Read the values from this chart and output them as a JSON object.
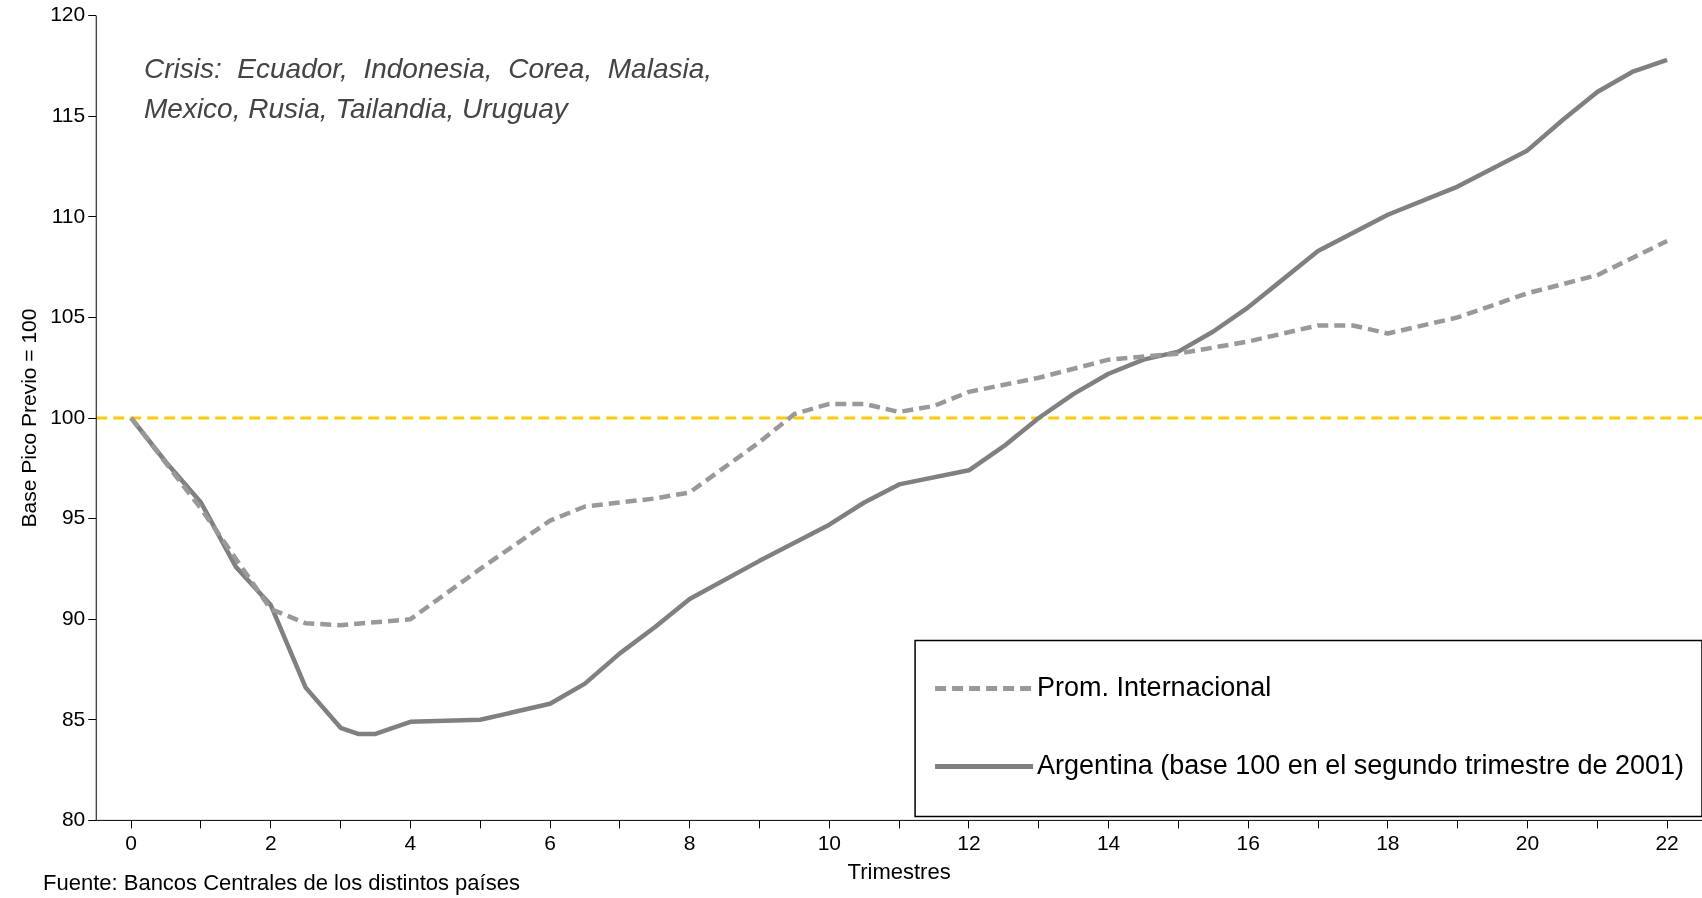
{
  "chart_data": {
    "type": "line",
    "xlabel": "Trimestres",
    "ylabel": "Base Pico Previo = 100",
    "annotations": [
      "Crisis:  Ecuador,  Indonesia,  Corea,  Malasia,",
      "Mexico, Rusia, Tailandia, Uruguay",
      "Fuente: Bancos Centrales de los distintos países"
    ],
    "xlim": [
      -0.5,
      22.5
    ],
    "xticks": [
      {
        "value": 0,
        "label": "0"
      },
      {
        "value": 1,
        "label": null
      },
      {
        "value": 2,
        "label": "2"
      },
      {
        "value": 3,
        "label": null
      },
      {
        "value": 4,
        "label": "4"
      },
      {
        "value": 5,
        "label": null
      },
      {
        "value": 6,
        "label": "6"
      },
      {
        "value": 7,
        "label": null
      },
      {
        "value": 8,
        "label": "8"
      },
      {
        "value": 9,
        "label": null
      },
      {
        "value": 10,
        "label": "10"
      },
      {
        "value": 11,
        "label": null
      },
      {
        "value": 12,
        "label": "12"
      },
      {
        "value": 13,
        "label": null
      },
      {
        "value": 14,
        "label": "14"
      },
      {
        "value": 15,
        "label": null
      },
      {
        "value": 16,
        "label": "16"
      },
      {
        "value": 17,
        "label": null
      },
      {
        "value": 18,
        "label": "18"
      },
      {
        "value": 19,
        "label": null
      },
      {
        "value": 20,
        "label": "20"
      },
      {
        "value": 21,
        "label": null
      },
      {
        "value": 22,
        "label": "22"
      }
    ],
    "ylim": [
      80,
      120
    ],
    "yticks": [
      80,
      85,
      90,
      95,
      100,
      105,
      110,
      115,
      120
    ],
    "grid": false,
    "legend": "bottom right",
    "marker": "none",
    "ref_lines": [
      {
        "axis": "y",
        "value": 100,
        "color": "#ffcc00",
        "line_style": "dashed"
      }
    ],
    "series": [
      {
        "name": "Prom. Internacional",
        "color": "#999999",
        "line_style": "dashed",
        "x": [
          0,
          1,
          2,
          2.5,
          3,
          4,
          5,
          6,
          6.5,
          7.5,
          8,
          9,
          9.5,
          10,
          10.5,
          11,
          11.5,
          12,
          13,
          14,
          15,
          16,
          17,
          17.5,
          18,
          19,
          20,
          21,
          22
        ],
        "values": [
          100,
          95.5,
          90.5,
          89.8,
          89.7,
          90,
          92.5,
          94.9,
          95.6,
          96,
          96.3,
          98.8,
          100.2,
          100.7,
          100.7,
          100.3,
          100.6,
          101.3,
          102,
          102.9,
          103.2,
          103.8,
          104.6,
          104.6,
          104.2,
          105,
          106.2,
          107.1,
          108.8
        ]
      },
      {
        "name": "Argentina (base 100 en el segundo trimestre de 2001)",
        "color": "#808080",
        "line_style": "solid",
        "x": [
          0,
          0.5,
          1,
          1.5,
          2,
          2.5,
          3,
          3.25,
          3.5,
          4,
          5,
          6,
          6.5,
          7,
          7.5,
          8,
          9,
          10,
          10.5,
          11,
          12,
          12.5,
          13,
          13.5,
          14,
          14.5,
          15,
          15.5,
          16,
          17,
          18,
          19,
          20,
          20.5,
          21,
          21.5,
          22
        ],
        "values": [
          100,
          97.8,
          95.8,
          92.6,
          90.7,
          86.6,
          84.6,
          84.3,
          84.3,
          84.9,
          85,
          85.8,
          86.8,
          88.3,
          89.6,
          91,
          92.9,
          94.7,
          95.8,
          96.7,
          97.4,
          98.6,
          100,
          101.2,
          102.2,
          102.9,
          103.3,
          104.3,
          105.5,
          108.3,
          110.1,
          111.5,
          113.3,
          114.8,
          116.2,
          117.2,
          117.8
        ]
      }
    ]
  }
}
